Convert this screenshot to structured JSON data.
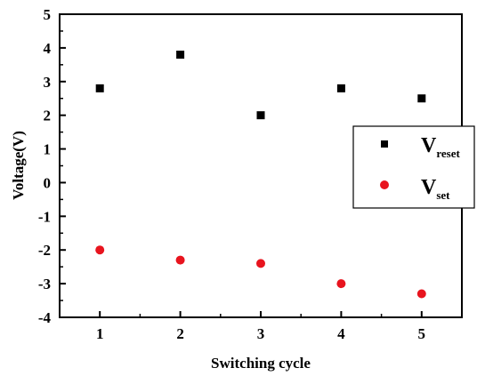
{
  "chart_data": {
    "type": "scatter",
    "title": "",
    "xlabel": "Switching cycle",
    "ylabel": "Voltage(V)",
    "xlim": [
      0.5,
      5.5
    ],
    "ylim": [
      -4,
      5
    ],
    "xticks": [
      "1",
      "2",
      "3",
      "4",
      "5"
    ],
    "yticks": [
      "-4",
      "-3",
      "-2",
      "-1",
      "0",
      "1",
      "2",
      "3",
      "4",
      "5"
    ],
    "legend_position": "right",
    "grid": false,
    "series": [
      {
        "name_main": "V",
        "name_sub": "reset",
        "marker": "square",
        "color": "#000000",
        "x": [
          1,
          2,
          3,
          4,
          5
        ],
        "y": [
          2.8,
          3.8,
          2.0,
          2.8,
          2.5
        ]
      },
      {
        "name_main": "V",
        "name_sub": "set",
        "marker": "circle",
        "color": "#e8141e",
        "x": [
          1,
          2,
          3,
          4,
          5
        ],
        "y": [
          -2.0,
          -2.3,
          -2.4,
          -3.0,
          -3.3
        ]
      }
    ]
  }
}
